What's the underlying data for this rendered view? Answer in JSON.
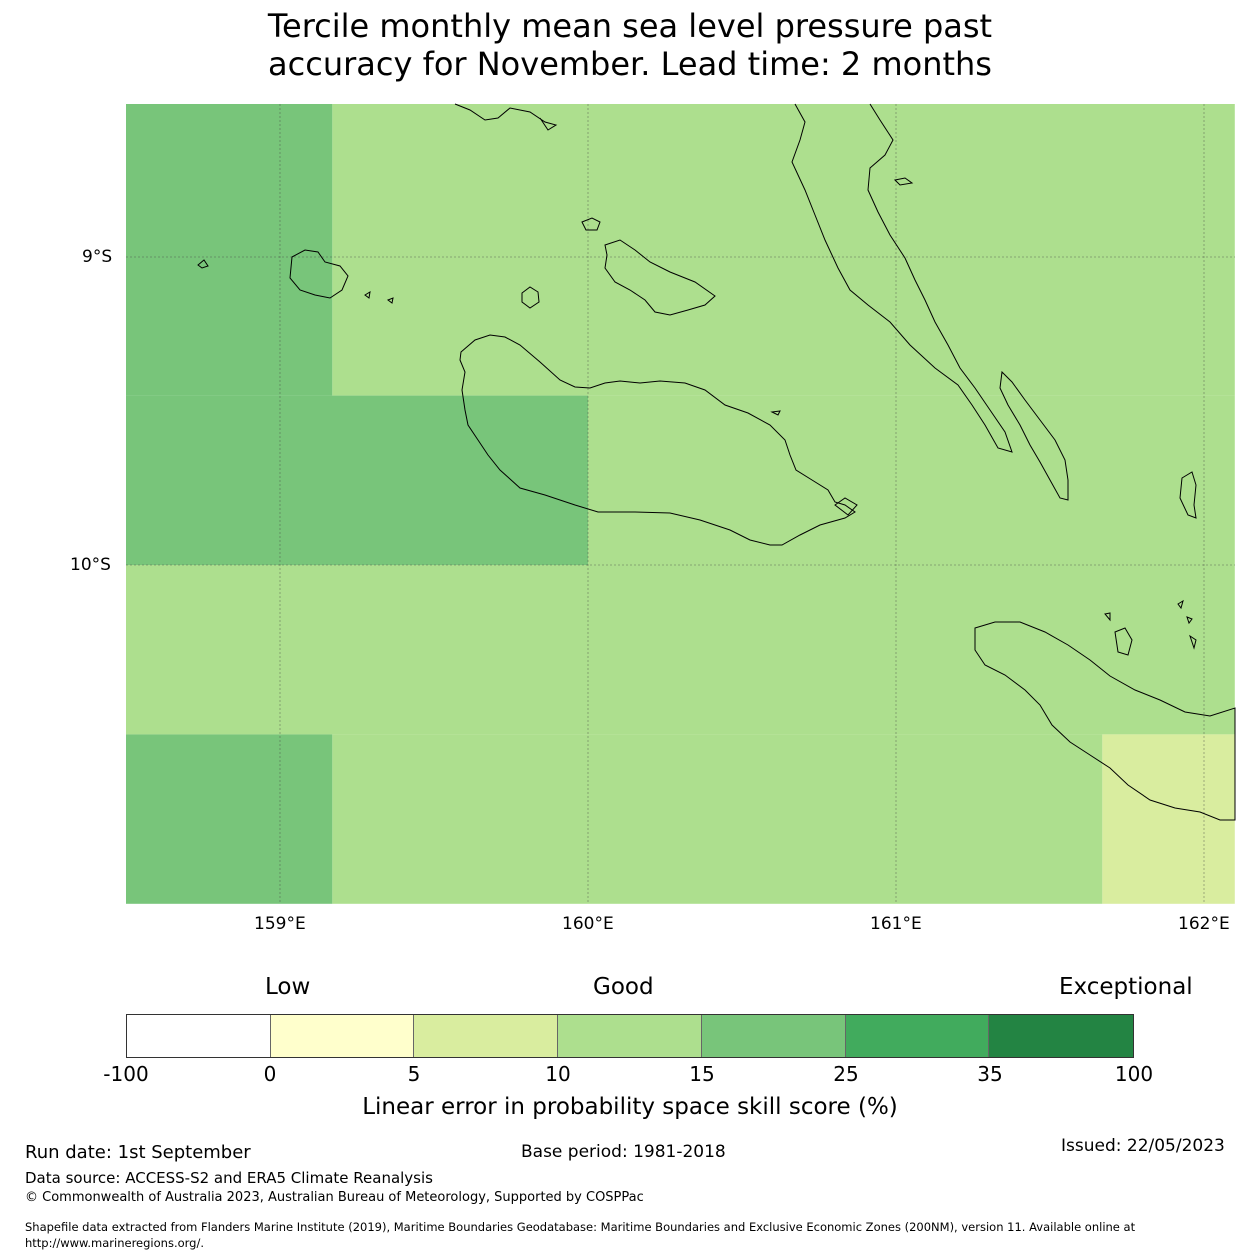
{
  "title": {
    "line1": "Tercile monthly mean sea level pressure past",
    "line2": "accuracy for November. Lead time: 2 months"
  },
  "map": {
    "lat_labels": [
      "9°S",
      "10°S"
    ],
    "lon_labels": [
      "159°E",
      "160°E",
      "161°E",
      "162°E"
    ],
    "grid_cells": [
      {
        "lon": [
          158.5,
          159.17
        ],
        "lat": [
          -8.5,
          -9.45
        ],
        "category": "15-25"
      },
      {
        "lon": [
          159.17,
          162.1
        ],
        "lat": [
          -8.5,
          -9.45
        ],
        "category": "10-15"
      },
      {
        "lon": [
          158.5,
          160.0
        ],
        "lat": [
          -9.45,
          -10.0
        ],
        "category": "15-25"
      },
      {
        "lon": [
          160.0,
          162.1
        ],
        "lat": [
          -9.45,
          -10.0
        ],
        "category": "10-15"
      },
      {
        "lon": [
          158.5,
          162.1
        ],
        "lat": [
          -10.0,
          -10.55
        ],
        "category": "10-15"
      },
      {
        "lon": [
          158.5,
          159.17
        ],
        "lat": [
          -10.55,
          -11.1
        ],
        "category": "15-25"
      },
      {
        "lon": [
          159.17,
          161.67
        ],
        "lat": [
          -10.55,
          -11.1
        ],
        "category": "10-15"
      },
      {
        "lon": [
          161.67,
          162.1
        ],
        "lat": [
          -10.55,
          -11.1
        ],
        "category": "5-10"
      }
    ]
  },
  "colorbar": {
    "categories": [
      "Low",
      "Good",
      "Exceptional"
    ],
    "ticks": [
      "-100",
      "0",
      "5",
      "10",
      "15",
      "25",
      "35",
      "100"
    ],
    "colors": [
      "#ffffff",
      "#ffffcc",
      "#d9ed9f",
      "#addf8e",
      "#78c57a",
      "#41ab5d",
      "#238443"
    ],
    "label": "Linear error in probability space skill score (%)"
  },
  "footer": {
    "run_date": "Run date: 1st September",
    "base_period": "Base period: 1981-2018",
    "issued": "Issued: 22/05/2023",
    "data_source": "Data source: ACCESS-S2 and ERA5 Climate Reanalysis",
    "copyright": "© Commonwealth of Australia 2023, Australian Bureau of Meteorology, Supported by COSPPac",
    "shapefile_line1": "Shapefile data extracted from Flanders Marine Institute (2019), Maritime Boundaries Geodatabase: Maritime Boundaries and Exclusive Economic Zones (200NM), version 11. Available online at",
    "shapefile_line2": "http://www.marineregions.org/."
  }
}
